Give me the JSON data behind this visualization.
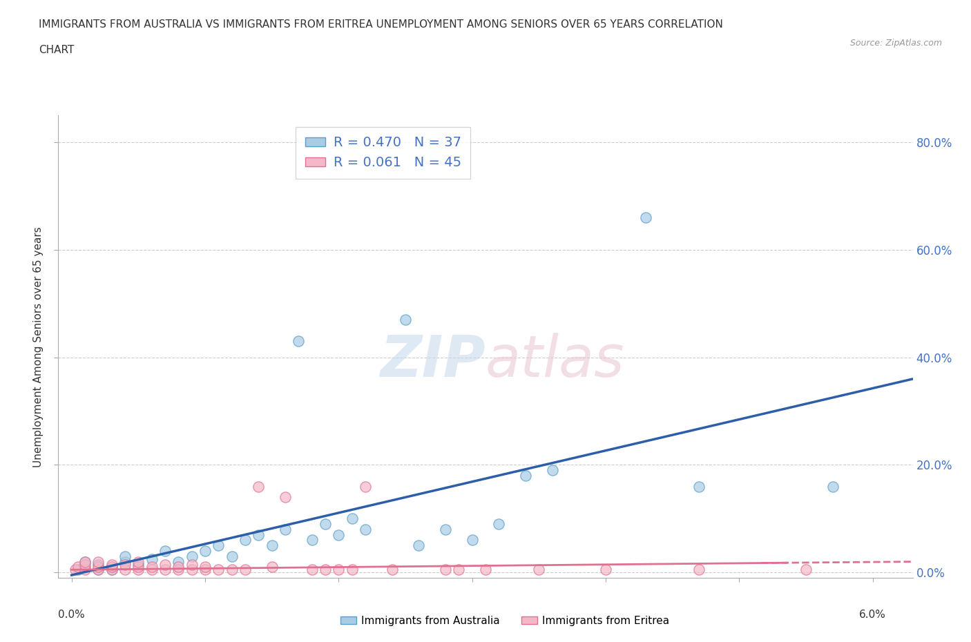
{
  "title_line1": "IMMIGRANTS FROM AUSTRALIA VS IMMIGRANTS FROM ERITREA UNEMPLOYMENT AMONG SENIORS OVER 65 YEARS CORRELATION",
  "title_line2": "CHART",
  "source": "Source: ZipAtlas.com",
  "ylabel": "Unemployment Among Seniors over 65 years",
  "background_color": "#ffffff",
  "australia_color": "#a8cce4",
  "eritrea_color": "#f4b8c8",
  "australia_edge_color": "#5b9ec9",
  "eritrea_edge_color": "#e07090",
  "australia_line_color": "#2c5fa8",
  "eritrea_line_color": "#e07090",
  "legend_r_aus": "0.470",
  "legend_n_aus": "37",
  "legend_r_eri": "0.061",
  "legend_n_eri": "45",
  "australia_scatter": [
    [
      0.0005,
      0.005
    ],
    [
      0.001,
      0.01
    ],
    [
      0.001,
      0.02
    ],
    [
      0.002,
      0.005
    ],
    [
      0.002,
      0.015
    ],
    [
      0.003,
      0.005
    ],
    [
      0.003,
      0.01
    ],
    [
      0.004,
      0.02
    ],
    [
      0.004,
      0.03
    ],
    [
      0.005,
      0.015
    ],
    [
      0.006,
      0.025
    ],
    [
      0.007,
      0.04
    ],
    [
      0.008,
      0.02
    ],
    [
      0.009,
      0.03
    ],
    [
      0.01,
      0.04
    ],
    [
      0.011,
      0.05
    ],
    [
      0.012,
      0.03
    ],
    [
      0.013,
      0.06
    ],
    [
      0.014,
      0.07
    ],
    [
      0.015,
      0.05
    ],
    [
      0.016,
      0.08
    ],
    [
      0.017,
      0.43
    ],
    [
      0.018,
      0.06
    ],
    [
      0.019,
      0.09
    ],
    [
      0.02,
      0.07
    ],
    [
      0.021,
      0.1
    ],
    [
      0.022,
      0.08
    ],
    [
      0.025,
      0.47
    ],
    [
      0.026,
      0.05
    ],
    [
      0.028,
      0.08
    ],
    [
      0.03,
      0.06
    ],
    [
      0.032,
      0.09
    ],
    [
      0.034,
      0.18
    ],
    [
      0.036,
      0.19
    ],
    [
      0.043,
      0.66
    ],
    [
      0.047,
      0.16
    ],
    [
      0.057,
      0.16
    ]
  ],
  "eritrea_scatter": [
    [
      0.0003,
      0.005
    ],
    [
      0.0005,
      0.01
    ],
    [
      0.001,
      0.005
    ],
    [
      0.001,
      0.015
    ],
    [
      0.001,
      0.02
    ],
    [
      0.002,
      0.005
    ],
    [
      0.002,
      0.01
    ],
    [
      0.002,
      0.02
    ],
    [
      0.003,
      0.005
    ],
    [
      0.003,
      0.01
    ],
    [
      0.003,
      0.015
    ],
    [
      0.004,
      0.005
    ],
    [
      0.004,
      0.015
    ],
    [
      0.005,
      0.005
    ],
    [
      0.005,
      0.01
    ],
    [
      0.005,
      0.02
    ],
    [
      0.006,
      0.005
    ],
    [
      0.006,
      0.01
    ],
    [
      0.007,
      0.005
    ],
    [
      0.007,
      0.015
    ],
    [
      0.008,
      0.005
    ],
    [
      0.008,
      0.01
    ],
    [
      0.009,
      0.005
    ],
    [
      0.009,
      0.015
    ],
    [
      0.01,
      0.005
    ],
    [
      0.01,
      0.01
    ],
    [
      0.011,
      0.005
    ],
    [
      0.012,
      0.005
    ],
    [
      0.013,
      0.005
    ],
    [
      0.014,
      0.16
    ],
    [
      0.015,
      0.01
    ],
    [
      0.016,
      0.14
    ],
    [
      0.018,
      0.005
    ],
    [
      0.019,
      0.005
    ],
    [
      0.02,
      0.005
    ],
    [
      0.021,
      0.005
    ],
    [
      0.022,
      0.16
    ],
    [
      0.024,
      0.005
    ],
    [
      0.028,
      0.005
    ],
    [
      0.029,
      0.005
    ],
    [
      0.031,
      0.005
    ],
    [
      0.035,
      0.005
    ],
    [
      0.04,
      0.005
    ],
    [
      0.047,
      0.005
    ],
    [
      0.055,
      0.005
    ]
  ],
  "xlim": [
    -0.001,
    0.063
  ],
  "ylim": [
    -0.01,
    0.85
  ],
  "yticks": [
    0.0,
    0.2,
    0.4,
    0.6,
    0.8
  ],
  "ytick_labels": [
    "0.0%",
    "20.0%",
    "40.0%",
    "60.0%",
    "80.0%"
  ],
  "aus_trend": [
    0.0,
    0.063,
    -0.005,
    0.36
  ],
  "eri_trend": [
    0.0,
    0.063,
    0.005,
    0.02
  ]
}
